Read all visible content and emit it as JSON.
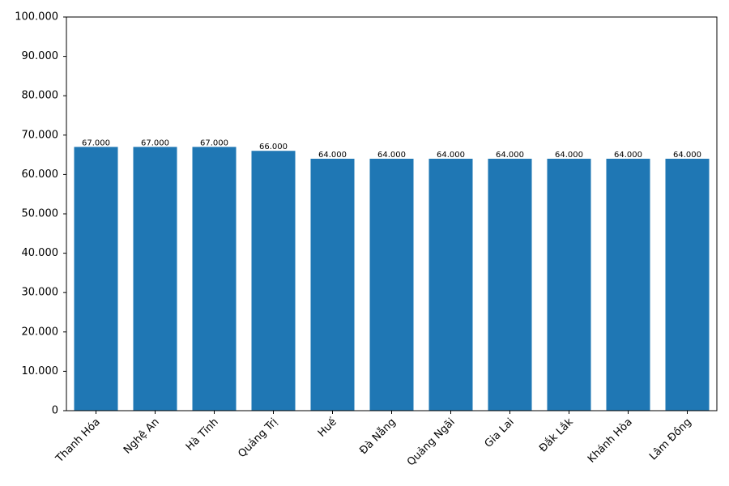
{
  "chart_data": {
    "type": "bar",
    "categories": [
      "Thanh Hóa",
      "Nghệ An",
      "Hà Tĩnh",
      "Quảng Trị",
      "Huế",
      "Đà Nẵng",
      "Quảng Ngãi",
      "Gia Lai",
      "Đắk Lắk",
      "Khánh Hòa",
      "Lâm Đồng"
    ],
    "values": [
      67000,
      67000,
      67000,
      66000,
      64000,
      64000,
      64000,
      64000,
      64000,
      64000,
      64000
    ],
    "value_labels": [
      "67.000",
      "67.000",
      "67.000",
      "66.000",
      "64.000",
      "64.000",
      "64.000",
      "64.000",
      "64.000",
      "64.000",
      "64.000"
    ],
    "color": "#1f77b4",
    "ylim": [
      0,
      100000
    ],
    "yticks": [
      0,
      {
        "value": 10000,
        "label": "10.000"
      },
      {
        "value": 20000,
        "label": "20.000"
      },
      {
        "value": 30000,
        "label": "30.000"
      },
      {
        "value": 40000,
        "label": "40.000"
      },
      {
        "value": 50000,
        "label": "50.000"
      },
      {
        "value": 60000,
        "label": "60.000"
      },
      {
        "value": 70000,
        "label": "70.000"
      },
      {
        "value": 80000,
        "label": "80.000"
      },
      {
        "value": 90000,
        "label": "90.000"
      },
      {
        "value": 100000,
        "label": "100.000"
      }
    ],
    "grid": false
  }
}
